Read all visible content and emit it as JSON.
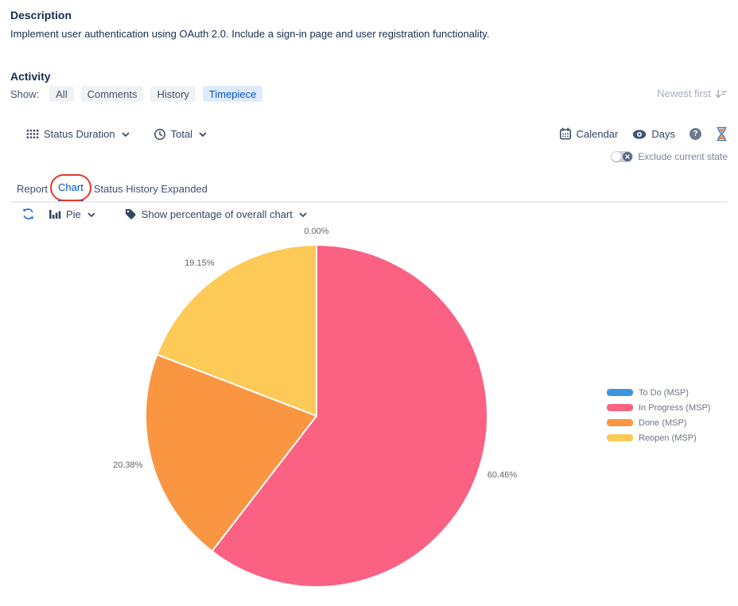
{
  "description": {
    "title": "Description",
    "body": "Implement user authentication using OAuth 2.0. Include a sign-in page and user registration functionality."
  },
  "activity": {
    "title": "Activity",
    "show_label": "Show:",
    "filters": [
      {
        "label": "All",
        "active": false
      },
      {
        "label": "Comments",
        "active": false
      },
      {
        "label": "History",
        "active": false
      },
      {
        "label": "Timepiece",
        "active": true
      }
    ],
    "sort_label": "Newest first"
  },
  "toolbar": {
    "report_type_label": "Status Duration",
    "metric_label": "Total",
    "calendar_label": "Calendar",
    "unit_label": "Days",
    "help_glyph": "?",
    "exclude_toggle_label": "Exclude current state",
    "exclude_toggle_on": false
  },
  "tabs": [
    {
      "label": "Report",
      "active": false
    },
    {
      "label": "Chart",
      "active": true,
      "annotated": true
    },
    {
      "label": "Status History Expanded",
      "active": false
    }
  ],
  "chart_controls": {
    "chart_type_label": "Pie",
    "label_mode_label": "Show percentage of overall chart"
  },
  "chart_data": {
    "type": "pie",
    "unit": "percent",
    "direction": "clockwise",
    "start_angle_deg": 0,
    "legend_position": "right",
    "slices": [
      {
        "label": "To Do (MSP)",
        "value": 0,
        "data_label": "0.00%",
        "color": "#3D96DD"
      },
      {
        "label": "In Progress (MSP)",
        "value": 60.46,
        "data_label": "60.46%",
        "color": "#FB6183"
      },
      {
        "label": "Done (MSP)",
        "value": 20.38,
        "data_label": "20.38%",
        "color": "#FA9642"
      },
      {
        "label": "Reopen (MSP)",
        "value": 19.15,
        "data_label": "19.15%",
        "color": "#FDCA57"
      }
    ]
  },
  "colors": {
    "heading_text": "#172B4D",
    "toolbar_text": "#344563",
    "muted_text": "#7A869A",
    "faint_text": "#A5ADBA",
    "accent_blue": "#0052CC",
    "filter_active_bg": "#DEEBFF",
    "filter_bg": "#F1F2F4",
    "annotation_red": "#E5372B",
    "data_label_text": "#63666A"
  }
}
